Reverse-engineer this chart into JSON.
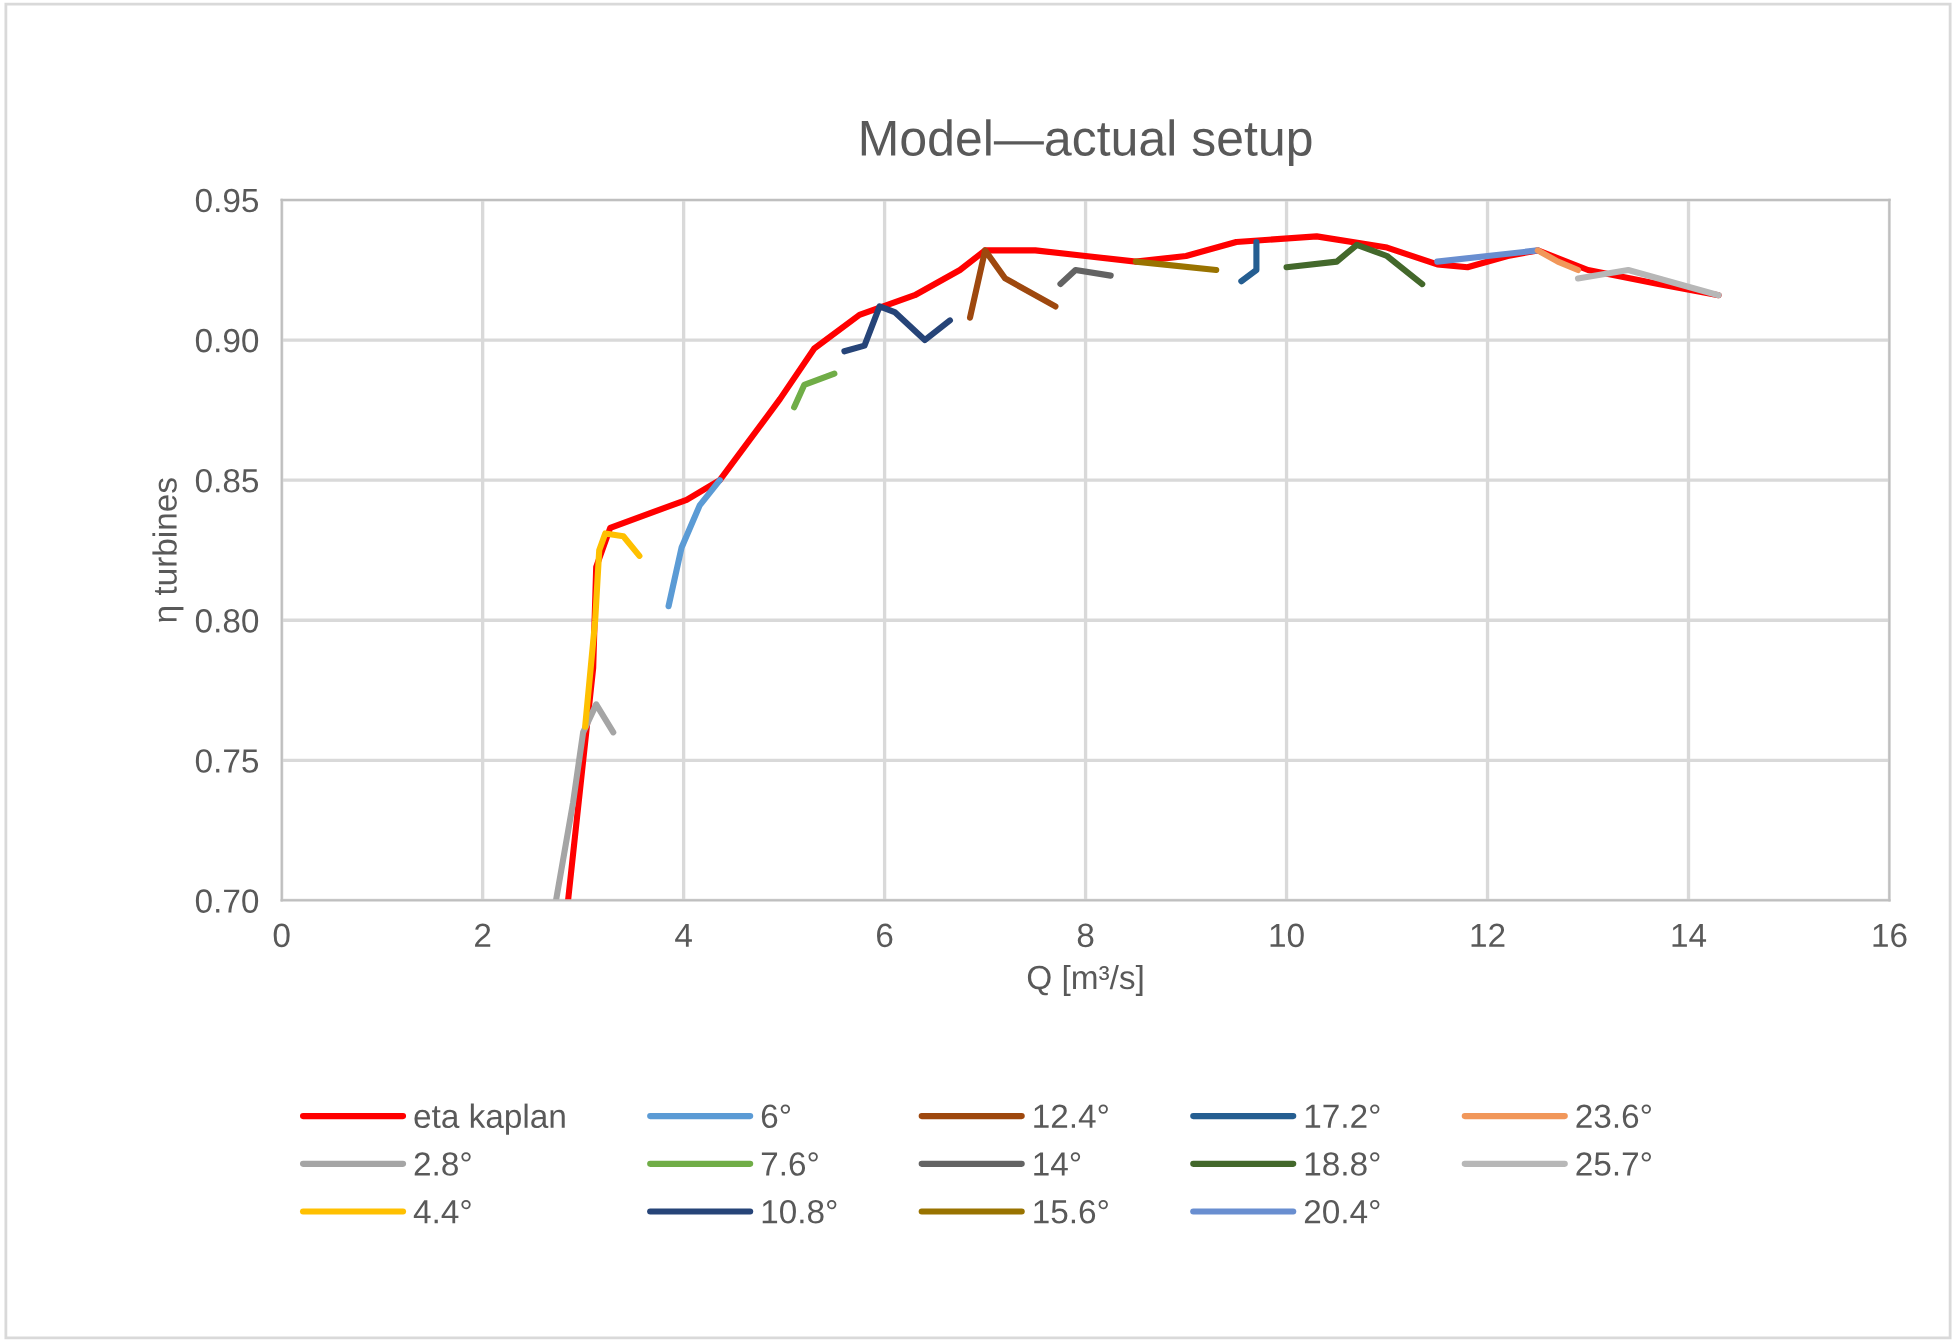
{
  "chart_data": {
    "type": "line",
    "title": "Model—actual setup",
    "xlabel": "Q [m³/s]",
    "ylabel": "η turbines",
    "xlim": [
      0,
      16
    ],
    "xticks": [
      0,
      2,
      4,
      6,
      8,
      10,
      12,
      14,
      16
    ],
    "ylim": [
      0.7,
      0.95
    ],
    "yticks": [
      {
        "value": 0.7,
        "label": "0.70"
      },
      {
        "value": 0.75,
        "label": "0.75"
      },
      {
        "value": 0.8,
        "label": "0.80"
      },
      {
        "value": 0.85,
        "label": "0.85"
      },
      {
        "value": 0.9,
        "label": "0.90"
      },
      {
        "value": 0.95,
        "label": "0.95"
      }
    ],
    "grid": true,
    "legend": "bottom",
    "marker": "none",
    "line_style": "solid",
    "series": [
      {
        "name": "eta kaplan",
        "color": "#ff0000",
        "x": [
          2.85,
          3.1,
          3.13,
          3.27,
          4.03,
          4.36,
          4.96,
          5.3,
          5.75,
          6.3,
          6.75,
          7.0,
          7.5,
          8.0,
          8.5,
          9.0,
          9.5,
          10.3,
          11.0,
          11.5,
          11.8,
          12.2,
          12.5,
          13.0,
          13.7,
          14.3
        ],
        "values": [
          0.7,
          0.783,
          0.819,
          0.833,
          0.843,
          0.85,
          0.879,
          0.897,
          0.909,
          0.916,
          0.925,
          0.932,
          0.932,
          0.93,
          0.928,
          0.93,
          0.935,
          0.937,
          0.933,
          0.927,
          0.926,
          0.93,
          0.932,
          0.925,
          0.92,
          0.916
        ]
      },
      {
        "name": "2.8°",
        "color": "#a5a5a5",
        "x": [
          2.73,
          2.9,
          3.0,
          3.13,
          3.3
        ],
        "values": [
          0.7,
          0.735,
          0.76,
          0.77,
          0.76
        ]
      },
      {
        "name": "4.4°",
        "color": "#ffc000",
        "x": [
          3.02,
          3.12,
          3.16,
          3.22,
          3.4,
          3.56
        ],
        "values": [
          0.762,
          0.8,
          0.825,
          0.831,
          0.83,
          0.823
        ]
      },
      {
        "name": "6°",
        "color": "#5b9bd5",
        "x": [
          3.85,
          3.98,
          4.16,
          4.36
        ],
        "values": [
          0.805,
          0.826,
          0.841,
          0.85
        ]
      },
      {
        "name": "7.6°",
        "color": "#70ad47",
        "x": [
          5.1,
          5.2,
          5.5
        ],
        "values": [
          0.876,
          0.884,
          0.888
        ]
      },
      {
        "name": "10.8°",
        "color": "#264478",
        "x": [
          5.6,
          5.8,
          5.95,
          6.1,
          6.4,
          6.65
        ],
        "values": [
          0.896,
          0.898,
          0.912,
          0.91,
          0.9,
          0.907
        ]
      },
      {
        "name": "12.4°",
        "color": "#9e480e",
        "x": [
          6.85,
          7.0,
          7.2,
          7.7
        ],
        "values": [
          0.908,
          0.932,
          0.922,
          0.912
        ]
      },
      {
        "name": "14°",
        "color": "#636363",
        "x": [
          7.75,
          7.9,
          8.25
        ],
        "values": [
          0.92,
          0.925,
          0.923
        ]
      },
      {
        "name": "15.6°",
        "color": "#997300",
        "x": [
          8.5,
          9.3
        ],
        "values": [
          0.928,
          0.925
        ]
      },
      {
        "name": "17.2°",
        "color": "#255e91",
        "x": [
          9.55,
          9.7,
          9.7
        ],
        "values": [
          0.921,
          0.925,
          0.935
        ]
      },
      {
        "name": "18.8°",
        "color": "#43682b",
        "x": [
          10.0,
          10.5,
          10.7,
          11.0,
          11.35
        ],
        "values": [
          0.926,
          0.928,
          0.934,
          0.93,
          0.92
        ]
      },
      {
        "name": "20.4°",
        "color": "#698ed0",
        "x": [
          11.5,
          12.0,
          12.5
        ],
        "values": [
          0.928,
          0.93,
          0.932
        ]
      },
      {
        "name": "23.6°",
        "color": "#f1975a",
        "x": [
          12.5,
          12.7,
          12.9
        ],
        "values": [
          0.932,
          0.928,
          0.925
        ]
      },
      {
        "name": "25.7°",
        "color": "#b7b7b7",
        "x": [
          12.9,
          13.4,
          14.3
        ],
        "values": [
          0.922,
          0.925,
          0.916
        ]
      }
    ]
  }
}
